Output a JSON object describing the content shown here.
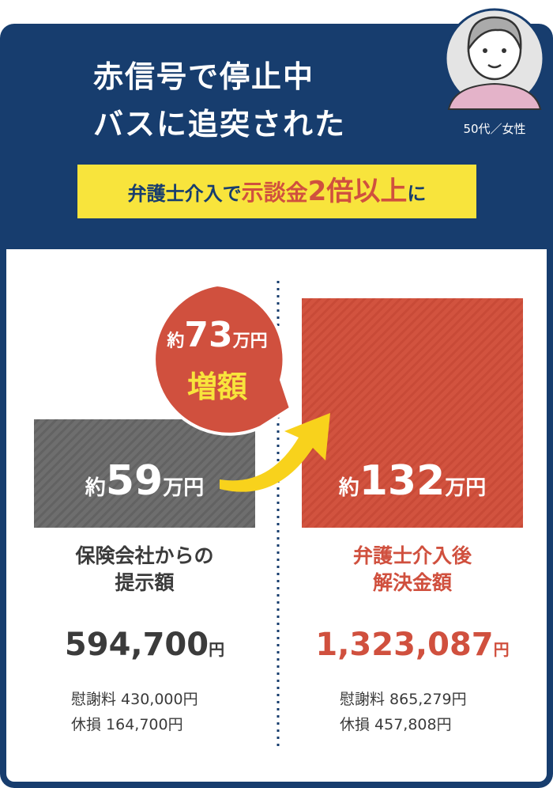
{
  "header": {
    "title_lines": [
      "赤信号で停止中",
      "バスに追突された"
    ],
    "persona": "50代／女性",
    "banner": {
      "lead": "弁護士介入で",
      "highlight_word": "示談金",
      "highlight_number": "2倍以上",
      "tail": "に"
    }
  },
  "bubble": {
    "prefix": "約",
    "number": "73",
    "unit": "万円",
    "label": "増額"
  },
  "left": {
    "box": {
      "prefix": "約",
      "number": "59",
      "unit": "万円"
    },
    "label_lines": [
      "保険会社からの",
      "提示額"
    ],
    "amount": "594,700",
    "amount_unit": "円",
    "breakdown": [
      "慰謝料 430,000円",
      "休損 164,700円"
    ]
  },
  "right": {
    "box": {
      "prefix": "約",
      "number": "132",
      "unit": "万円"
    },
    "label_lines": [
      "弁護士介入後",
      "解決金額"
    ],
    "amount": "1,323,087",
    "amount_unit": "円",
    "breakdown": [
      "慰謝料 865,279円",
      "休損 457,808円"
    ]
  }
}
